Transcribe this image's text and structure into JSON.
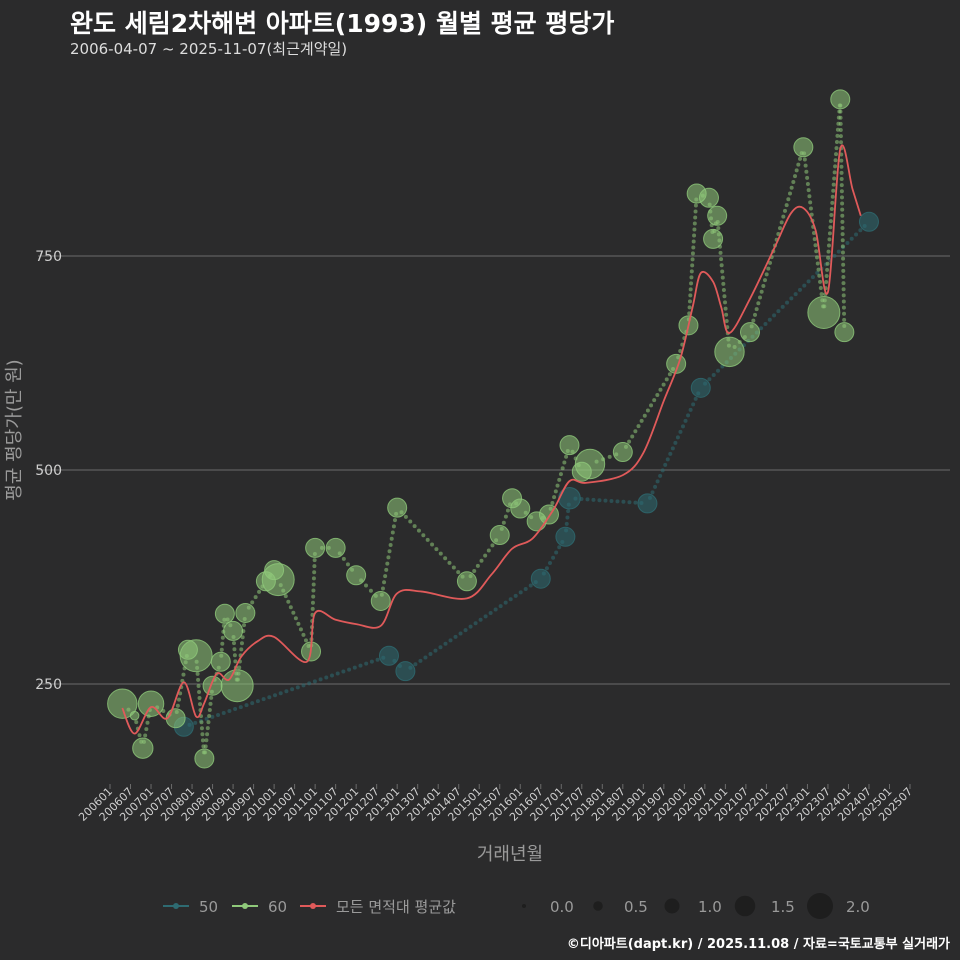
{
  "header": {
    "title": "완도 세림2차해변 아파트(1993) 월별 평균 평당가",
    "subtitle": "2006-04-07 ~ 2025-11-07(최근계약일)"
  },
  "caption": "©디아파트(dapt.kr) / 2025.11.08 / 자료=국토교통부 실거래가",
  "colors": {
    "background": "#2b2b2c",
    "grid": "#6b6b6b",
    "series_50": "#2e6b72",
    "series_60": "#8fc97a",
    "series_avg": "#e05a5a"
  },
  "chart_data": {
    "type": "line",
    "xlabel": "거래년월",
    "ylabel": "평균 평당가(만 원)",
    "xlim": [
      2006.0,
      2026.0
    ],
    "ylim": [
      120,
      950
    ],
    "y_ticks": [
      250,
      500,
      750
    ],
    "y_tick_labels": [
      "250",
      "500",
      "750"
    ],
    "x_ticks": [
      "200601",
      "200607",
      "200701",
      "200707",
      "200801",
      "200807",
      "200901",
      "200907",
      "201001",
      "201007",
      "201101",
      "201107",
      "201201",
      "201207",
      "201301",
      "201307",
      "201401",
      "201407",
      "201501",
      "201507",
      "201601",
      "201607",
      "201701",
      "201707",
      "201801",
      "201807",
      "201901",
      "201907",
      "202001",
      "202007",
      "202101",
      "202107",
      "202201",
      "202207",
      "202301",
      "202307",
      "202401",
      "202407",
      "202501",
      "202507"
    ],
    "series": [
      {
        "name": "50",
        "points": [
          {
            "x": 2007.8,
            "y": 200,
            "size": 1.0
          },
          {
            "x": 2012.8,
            "y": 283,
            "size": 1.0
          },
          {
            "x": 2013.2,
            "y": 265,
            "size": 1.0
          },
          {
            "x": 2016.5,
            "y": 373,
            "size": 1.0
          },
          {
            "x": 2017.1,
            "y": 422,
            "size": 1.0
          },
          {
            "x": 2017.2,
            "y": 467,
            "size": 1.2
          },
          {
            "x": 2019.1,
            "y": 461,
            "size": 1.0
          },
          {
            "x": 2020.4,
            "y": 596,
            "size": 1.0
          },
          {
            "x": 2024.5,
            "y": 790,
            "size": 1.0
          }
        ]
      },
      {
        "name": "60",
        "points": [
          {
            "x": 2006.3,
            "y": 227,
            "size": 1.8
          },
          {
            "x": 2006.6,
            "y": 213,
            "size": 0.2
          },
          {
            "x": 2006.8,
            "y": 175,
            "size": 1.1
          },
          {
            "x": 2007.0,
            "y": 227,
            "size": 1.5
          },
          {
            "x": 2007.6,
            "y": 210,
            "size": 1.0
          },
          {
            "x": 2007.9,
            "y": 290,
            "size": 1.0
          },
          {
            "x": 2008.1,
            "y": 283,
            "size": 2.0
          },
          {
            "x": 2008.3,
            "y": 163,
            "size": 1.0
          },
          {
            "x": 2008.5,
            "y": 248,
            "size": 1.0
          },
          {
            "x": 2008.7,
            "y": 276,
            "size": 1.0
          },
          {
            "x": 2008.8,
            "y": 332,
            "size": 1.0
          },
          {
            "x": 2009.0,
            "y": 312,
            "size": 1.0
          },
          {
            "x": 2009.1,
            "y": 248,
            "size": 2.0
          },
          {
            "x": 2009.3,
            "y": 333,
            "size": 1.0
          },
          {
            "x": 2009.8,
            "y": 370,
            "size": 1.0
          },
          {
            "x": 2010.0,
            "y": 383,
            "size": 1.0
          },
          {
            "x": 2010.1,
            "y": 372,
            "size": 2.0
          },
          {
            "x": 2010.9,
            "y": 288,
            "size": 1.0
          },
          {
            "x": 2011.0,
            "y": 409,
            "size": 1.0
          },
          {
            "x": 2011.5,
            "y": 409,
            "size": 1.0
          },
          {
            "x": 2012.0,
            "y": 377,
            "size": 1.0
          },
          {
            "x": 2012.6,
            "y": 347,
            "size": 1.0
          },
          {
            "x": 2013.0,
            "y": 456,
            "size": 1.0
          },
          {
            "x": 2014.7,
            "y": 370,
            "size": 1.0
          },
          {
            "x": 2015.5,
            "y": 424,
            "size": 1.0
          },
          {
            "x": 2015.8,
            "y": 467,
            "size": 1.0
          },
          {
            "x": 2016.0,
            "y": 455,
            "size": 1.0
          },
          {
            "x": 2016.4,
            "y": 440,
            "size": 1.0
          },
          {
            "x": 2016.7,
            "y": 448,
            "size": 1.0
          },
          {
            "x": 2017.2,
            "y": 529,
            "size": 1.0
          },
          {
            "x": 2017.5,
            "y": 498,
            "size": 1.0
          },
          {
            "x": 2017.7,
            "y": 507,
            "size": 1.8
          },
          {
            "x": 2018.5,
            "y": 521,
            "size": 1.0
          },
          {
            "x": 2019.8,
            "y": 624,
            "size": 1.0
          },
          {
            "x": 2020.1,
            "y": 669,
            "size": 1.0
          },
          {
            "x": 2020.3,
            "y": 823,
            "size": 1.0
          },
          {
            "x": 2020.6,
            "y": 818,
            "size": 1.0
          },
          {
            "x": 2020.7,
            "y": 770,
            "size": 1.0
          },
          {
            "x": 2020.8,
            "y": 797,
            "size": 1.0
          },
          {
            "x": 2021.1,
            "y": 638,
            "size": 1.8
          },
          {
            "x": 2021.6,
            "y": 661,
            "size": 1.0
          },
          {
            "x": 2022.9,
            "y": 877,
            "size": 1.0
          },
          {
            "x": 2023.4,
            "y": 684,
            "size": 2.0
          },
          {
            "x": 2023.8,
            "y": 933,
            "size": 1.0
          },
          {
            "x": 2023.9,
            "y": 661,
            "size": 1.0
          }
        ]
      },
      {
        "name": "모든 면적대 평균값",
        "points": [
          {
            "x": 2006.3,
            "y": 222
          },
          {
            "x": 2006.6,
            "y": 192
          },
          {
            "x": 2007.0,
            "y": 223
          },
          {
            "x": 2007.4,
            "y": 210
          },
          {
            "x": 2007.8,
            "y": 252
          },
          {
            "x": 2008.1,
            "y": 212
          },
          {
            "x": 2008.3,
            "y": 228
          },
          {
            "x": 2008.6,
            "y": 262
          },
          {
            "x": 2008.9,
            "y": 255
          },
          {
            "x": 2009.2,
            "y": 282
          },
          {
            "x": 2009.6,
            "y": 300
          },
          {
            "x": 2010.0,
            "y": 305
          },
          {
            "x": 2010.8,
            "y": 276
          },
          {
            "x": 2011.0,
            "y": 333
          },
          {
            "x": 2011.5,
            "y": 325
          },
          {
            "x": 2012.0,
            "y": 320
          },
          {
            "x": 2012.6,
            "y": 318
          },
          {
            "x": 2013.0,
            "y": 356
          },
          {
            "x": 2013.6,
            "y": 358
          },
          {
            "x": 2014.7,
            "y": 350
          },
          {
            "x": 2015.3,
            "y": 378
          },
          {
            "x": 2015.8,
            "y": 408
          },
          {
            "x": 2016.3,
            "y": 420
          },
          {
            "x": 2016.8,
            "y": 453
          },
          {
            "x": 2017.2,
            "y": 487
          },
          {
            "x": 2017.6,
            "y": 485
          },
          {
            "x": 2018.5,
            "y": 494
          },
          {
            "x": 2019.0,
            "y": 520
          },
          {
            "x": 2019.5,
            "y": 581
          },
          {
            "x": 2019.9,
            "y": 630
          },
          {
            "x": 2020.2,
            "y": 690
          },
          {
            "x": 2020.4,
            "y": 730
          },
          {
            "x": 2020.7,
            "y": 720
          },
          {
            "x": 2020.9,
            "y": 690
          },
          {
            "x": 2021.1,
            "y": 660
          },
          {
            "x": 2021.6,
            "y": 700
          },
          {
            "x": 2022.2,
            "y": 760
          },
          {
            "x": 2022.6,
            "y": 800
          },
          {
            "x": 2022.9,
            "y": 806
          },
          {
            "x": 2023.2,
            "y": 780
          },
          {
            "x": 2023.5,
            "y": 708
          },
          {
            "x": 2023.8,
            "y": 875
          },
          {
            "x": 2024.1,
            "y": 828
          },
          {
            "x": 2024.3,
            "y": 797
          }
        ]
      }
    ],
    "legend": {
      "position": "bottom",
      "series_labels": [
        "50",
        "60",
        "모든 면적대 평균값"
      ],
      "size_labels": [
        "0.0",
        "0.5",
        "1.0",
        "1.5",
        "2.0"
      ],
      "size_values": [
        0.0,
        0.5,
        1.0,
        1.5,
        2.0
      ]
    }
  }
}
